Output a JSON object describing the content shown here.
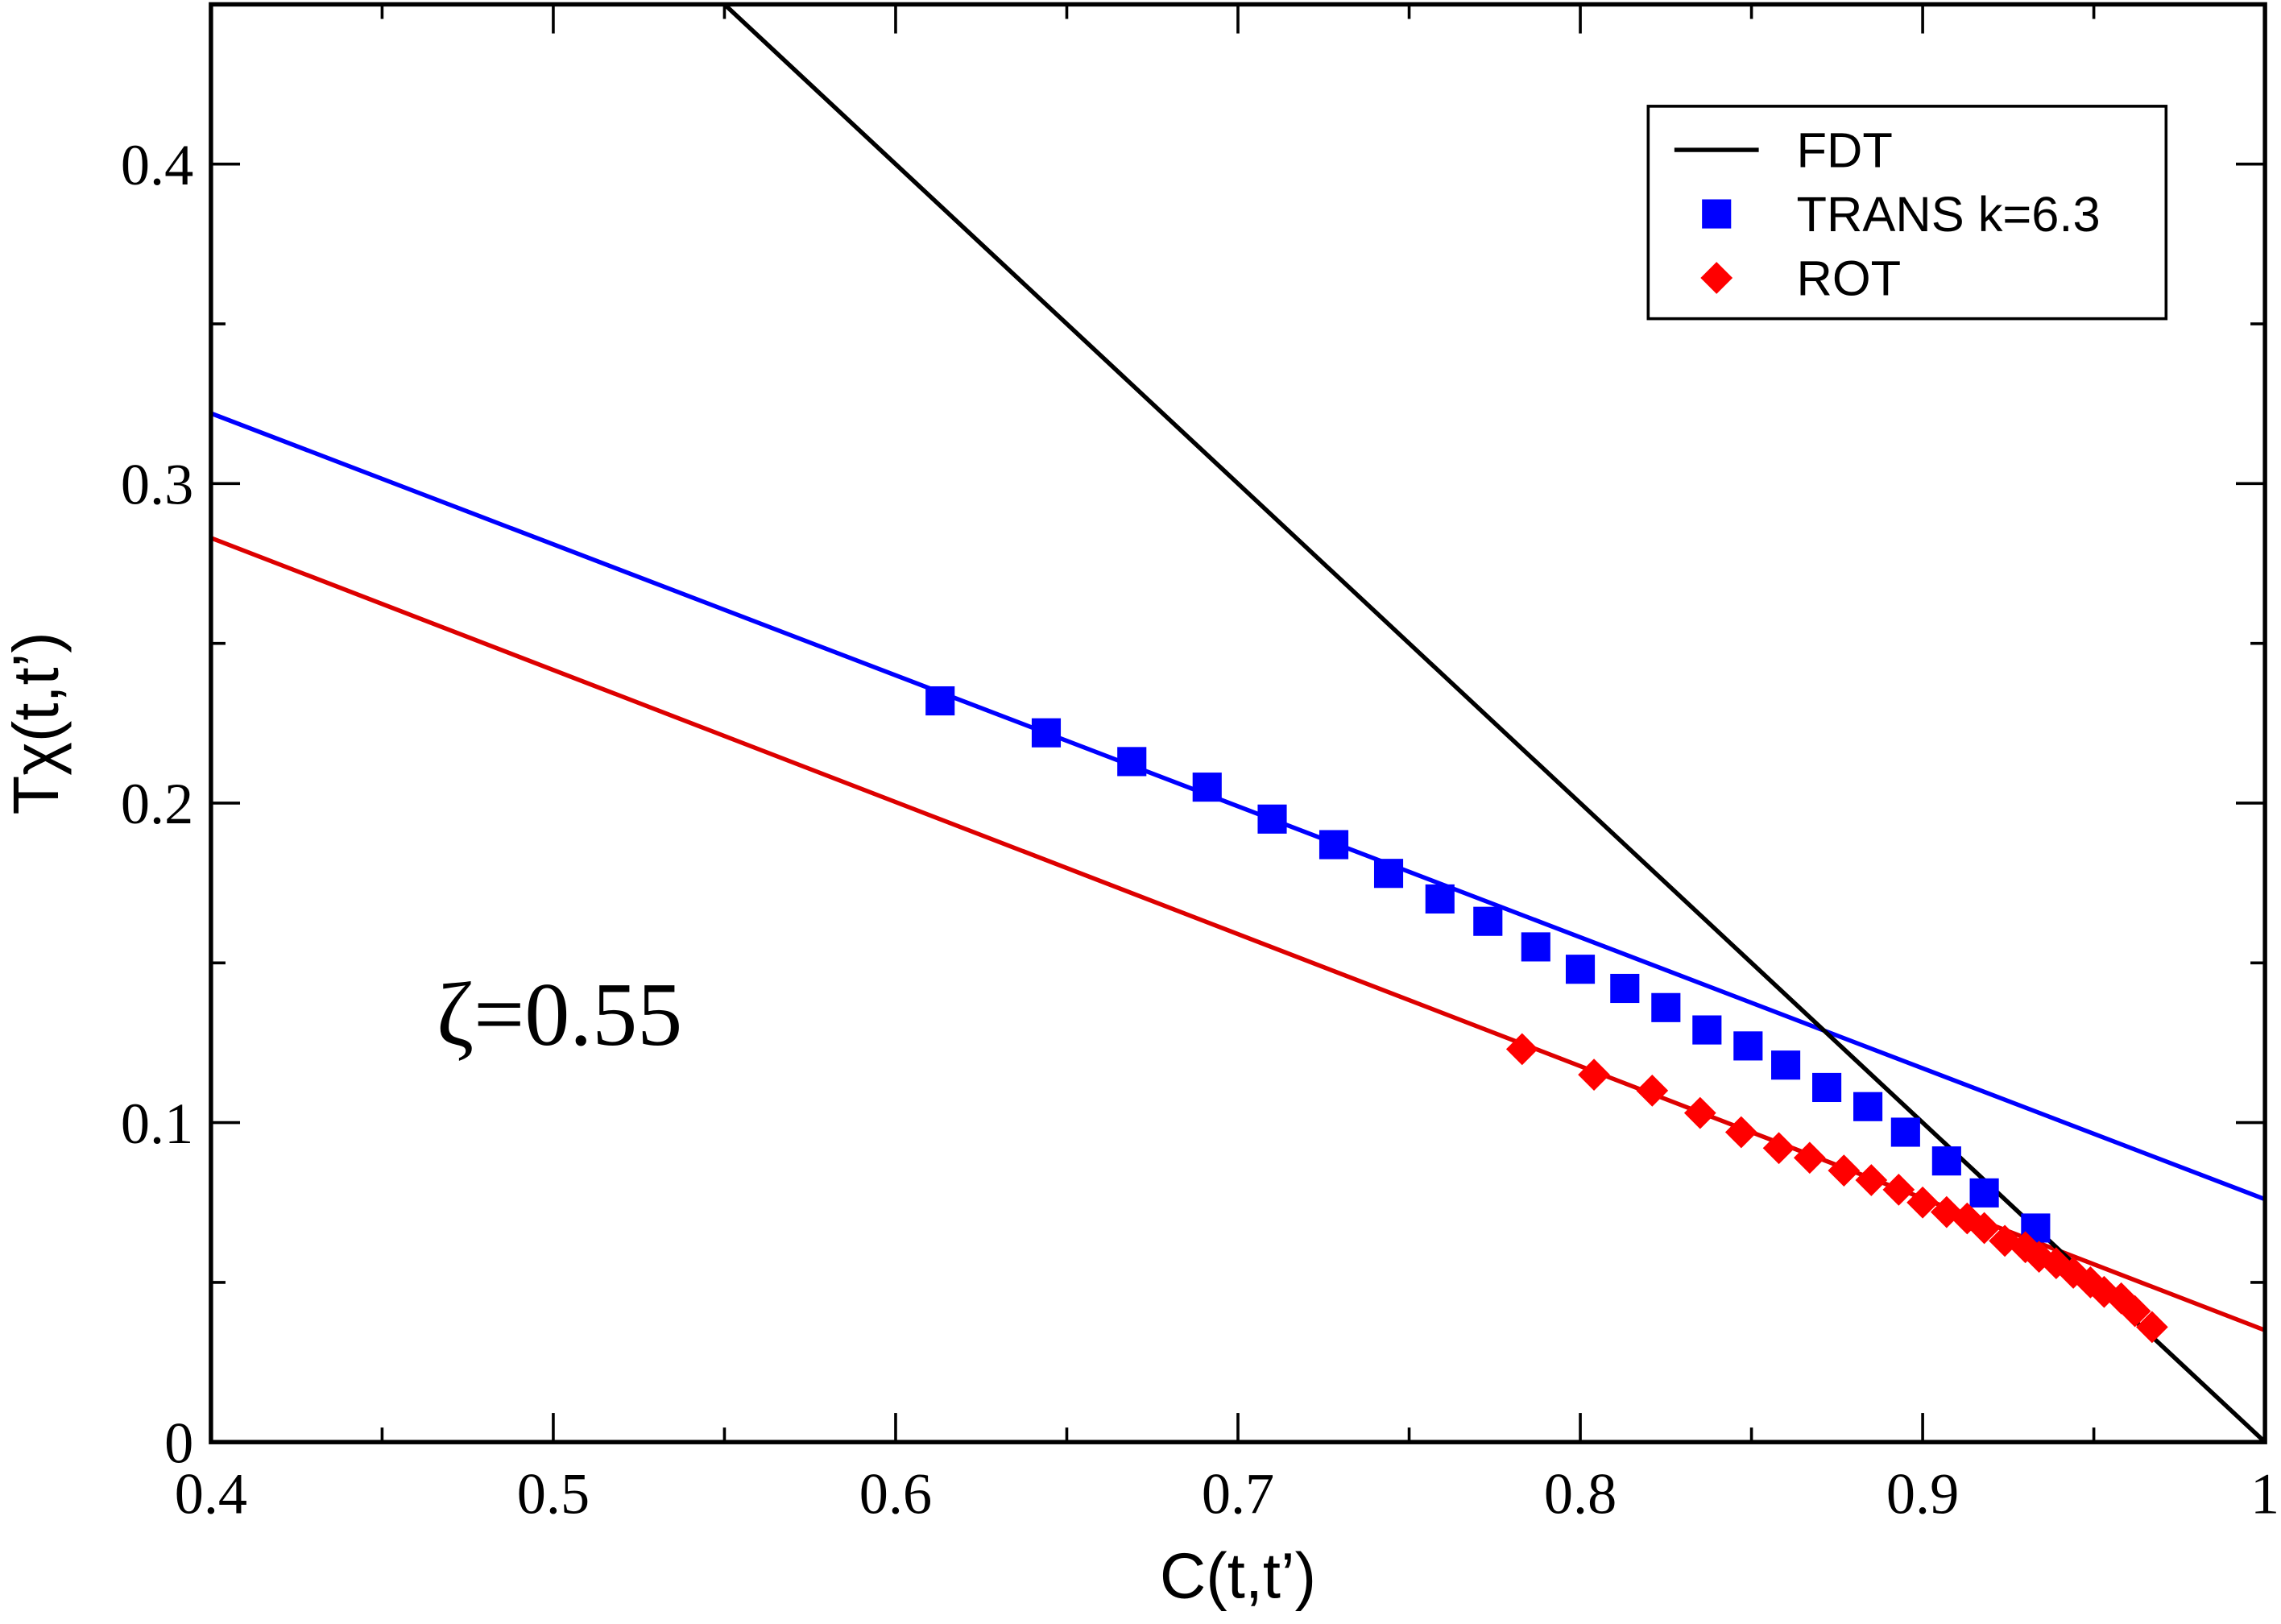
{
  "chart_data": {
    "type": "line",
    "xlabel": "C(t,t’)",
    "ylabel": "Tχ(t,t’)",
    "annotation": "ζ=0.55",
    "xlim": [
      0.4,
      1.0
    ],
    "ylim": [
      0,
      0.45
    ],
    "xticks": [
      0.4,
      0.5,
      0.6,
      0.7,
      0.8,
      0.9,
      1
    ],
    "yticks": [
      0,
      0.1,
      0.2,
      0.3,
      0.4
    ],
    "xticks_minor": [
      0.45,
      0.55,
      0.65,
      0.75,
      0.85,
      0.95
    ],
    "yticks_minor": [
      0.05,
      0.15,
      0.25,
      0.35
    ],
    "legend": "upper right",
    "series": [
      {
        "name": "FDT",
        "style": "line",
        "color": "#000000",
        "x": [
          0.55,
          1.0
        ],
        "values": [
          0.45,
          0
        ]
      },
      {
        "name": "TRANS k=6.3",
        "style": "marker",
        "marker": "square",
        "color": "#0000ff",
        "x": [
          0.613,
          0.644,
          0.669,
          0.691,
          0.71,
          0.728,
          0.744,
          0.759,
          0.773,
          0.787,
          0.8,
          0.813,
          0.825,
          0.837,
          0.849,
          0.86,
          0.872,
          0.884,
          0.895,
          0.907,
          0.918,
          0.933
        ],
        "values": [
          0.232,
          0.222,
          0.213,
          0.205,
          0.195,
          0.187,
          0.178,
          0.17,
          0.163,
          0.155,
          0.148,
          0.142,
          0.136,
          0.129,
          0.124,
          0.118,
          0.111,
          0.105,
          0.097,
          0.088,
          0.078,
          0.067
        ]
      },
      {
        "name": "ROT",
        "style": "marker",
        "marker": "diamond",
        "color": "#ff0000",
        "x": [
          0.783,
          0.804,
          0.821,
          0.835,
          0.847,
          0.858,
          0.867,
          0.877,
          0.885,
          0.893,
          0.9,
          0.907,
          0.913,
          0.918,
          0.924,
          0.93,
          0.934,
          0.939,
          0.944,
          0.949,
          0.953,
          0.958,
          0.962,
          0.967
        ],
        "values": [
          0.123,
          0.115,
          0.11,
          0.103,
          0.097,
          0.092,
          0.089,
          0.085,
          0.082,
          0.079,
          0.075,
          0.072,
          0.07,
          0.067,
          0.063,
          0.061,
          0.058,
          0.056,
          0.053,
          0.05,
          0.047,
          0.045,
          0.041,
          0.036
        ]
      }
    ],
    "fits": [
      {
        "color": "#0000ff",
        "x": [
          0.4,
          1.0
        ],
        "values": [
          0.322,
          0.076
        ]
      },
      {
        "color": "#dd0000",
        "x": [
          0.4,
          1.0
        ],
        "values": [
          0.283,
          0.035
        ]
      }
    ]
  }
}
